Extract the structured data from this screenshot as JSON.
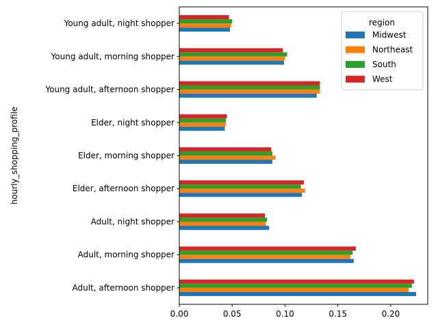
{
  "chart_data": {
    "type": "bar",
    "orientation": "horizontal",
    "ylabel": "hourly_shopping_profile",
    "xlabel": "",
    "xlim": [
      0,
      0.235
    ],
    "xticks": [
      "0.00",
      "0.05",
      "0.10",
      "0.15",
      "0.20"
    ],
    "xtick_values": [
      0,
      0.05,
      0.1,
      0.15,
      0.2
    ],
    "grid": false,
    "legend": {
      "title": "region",
      "placement": "top-right"
    },
    "categories": [
      "Adult, afternoon shopper",
      "Adult, morning shopper",
      "Adult, night shopper",
      "Elder, afternoon shopper",
      "Elder, morning shopper",
      "Elder, night shopper",
      "Young adult, afternoon shopper",
      "Young adult, morning shopper",
      "Young adult, night shopper"
    ],
    "series": [
      {
        "name": "Midwest",
        "color": "#1f77b4",
        "values": [
          0.224,
          0.165,
          0.085,
          0.116,
          0.088,
          0.043,
          0.13,
          0.099,
          0.048
        ]
      },
      {
        "name": "Northeast",
        "color": "#ff7f0e",
        "values": [
          0.217,
          0.162,
          0.082,
          0.119,
          0.091,
          0.044,
          0.133,
          0.1,
          0.049
        ]
      },
      {
        "name": "South",
        "color": "#2ca02c",
        "values": [
          0.22,
          0.164,
          0.083,
          0.115,
          0.088,
          0.044,
          0.133,
          0.102,
          0.05
        ]
      },
      {
        "name": "West",
        "color": "#d62728",
        "values": [
          0.222,
          0.167,
          0.081,
          0.118,
          0.087,
          0.045,
          0.133,
          0.098,
          0.047
        ]
      }
    ]
  }
}
